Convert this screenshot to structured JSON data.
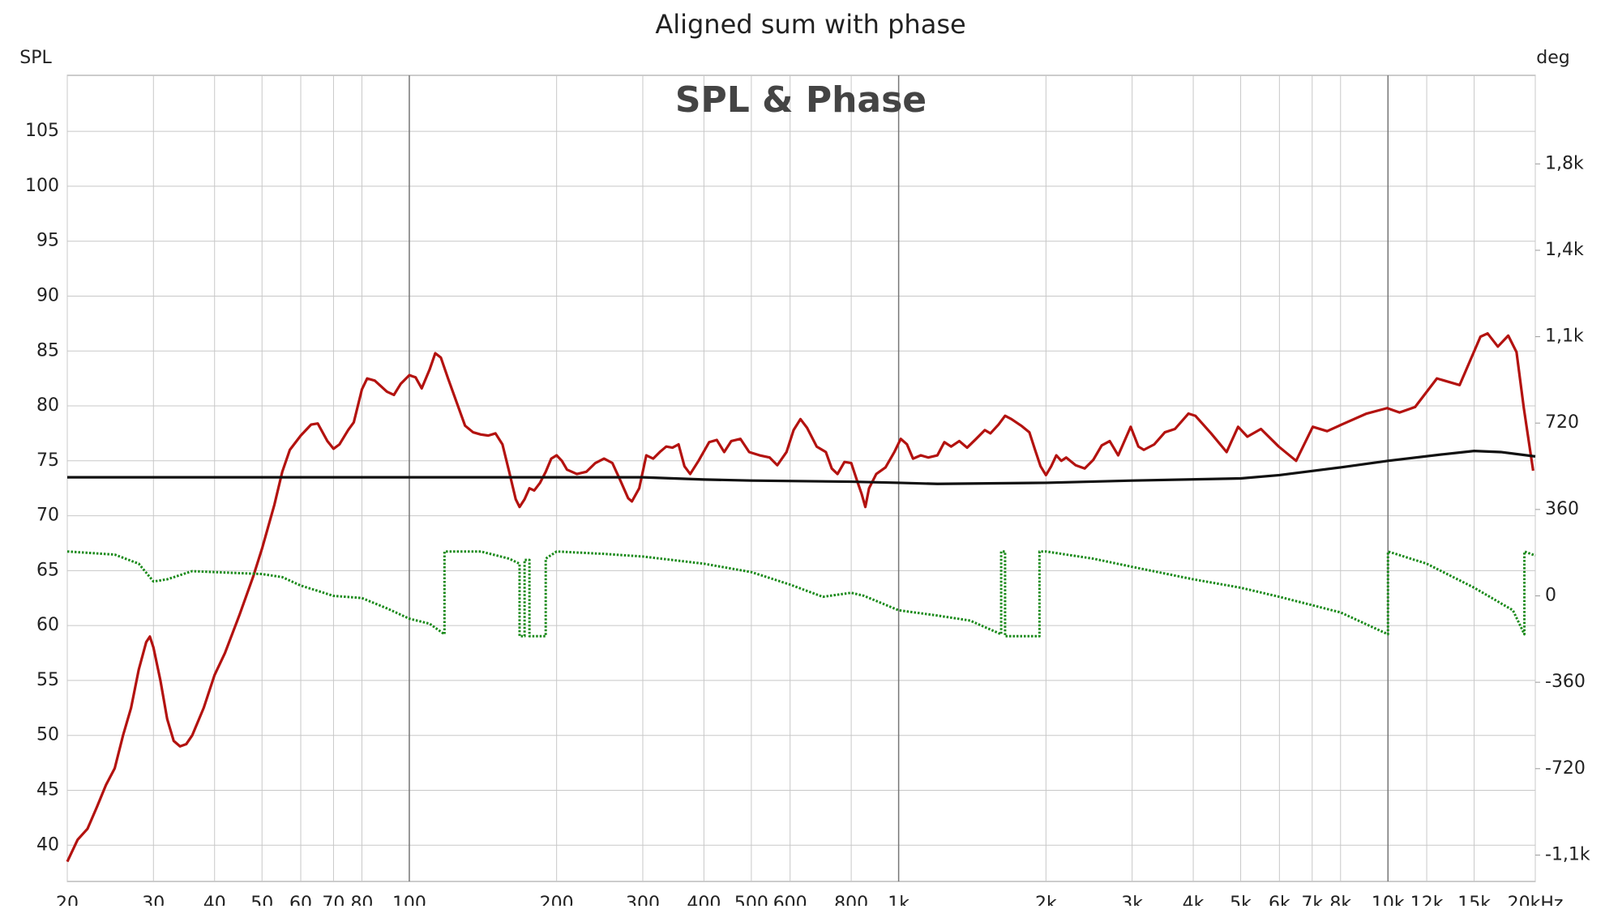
{
  "chart_data": {
    "type": "line",
    "title": "Aligned sum with phase",
    "subtitle": "SPL & Phase",
    "y_label": "SPL",
    "y2_label": "deg",
    "x_scale": "log",
    "grid": true,
    "xlim": [
      20,
      20000
    ],
    "xticks": [
      20,
      30,
      40,
      50,
      60,
      70,
      80,
      100,
      200,
      300,
      400,
      500,
      600,
      800,
      {
        "value": 1000,
        "label": "1k"
      },
      {
        "value": 2000,
        "label": "2k"
      },
      {
        "value": 3000,
        "label": "3k"
      },
      {
        "value": 4000,
        "label": "4k"
      },
      {
        "value": 5000,
        "label": "5k"
      },
      {
        "value": 6000,
        "label": "6k"
      },
      {
        "value": 7000,
        "label": "7k"
      },
      {
        "value": 8000,
        "label": "8k"
      },
      {
        "value": 10000,
        "label": "10k"
      },
      {
        "value": 12000,
        "label": "12k"
      },
      {
        "value": 15000,
        "label": "15k"
      },
      {
        "value": 20000,
        "label": "20kHz"
      }
    ],
    "ylim": [
      36.7,
      110.1
    ],
    "yticks": [
      40,
      45,
      50,
      55,
      60,
      65,
      70,
      75,
      80,
      85,
      90,
      95,
      100,
      105
    ],
    "y2lim": [
      -1190,
      2169
    ],
    "y2ticks": [
      {
        "value": -1080,
        "label": "-1,1k"
      },
      -720,
      -360,
      0,
      360,
      720,
      {
        "value": 1080,
        "label": "1,1k"
      },
      {
        "value": 1440,
        "label": "1,4k"
      },
      {
        "value": 1800,
        "label": "1,8k"
      }
    ],
    "series": [
      {
        "color": "#b3120f",
        "line_style": "solid",
        "x": [
          20,
          21,
          22,
          23,
          24,
          25,
          26,
          27,
          28,
          29,
          29.5,
          30,
          31,
          32,
          33,
          34,
          35,
          36,
          38,
          40,
          42,
          45,
          48,
          50,
          53,
          55,
          57,
          60,
          63,
          65,
          68,
          70,
          72,
          75,
          77,
          80,
          82,
          85,
          90,
          93,
          96,
          100,
          103,
          106,
          110,
          113,
          116,
          120,
          125,
          130,
          135,
          140,
          145,
          150,
          155,
          160,
          165,
          168,
          172,
          176,
          180,
          185,
          190,
          195,
          200,
          205,
          210,
          220,
          230,
          240,
          250,
          260,
          270,
          280,
          285,
          295,
          305,
          315,
          325,
          335,
          345,
          355,
          365,
          375,
          390,
          410,
          425,
          440,
          455,
          475,
          495,
          520,
          545,
          565,
          590,
          610,
          630,
          650,
          680,
          710,
          730,
          750,
          775,
          800,
          825,
          840,
          855,
          870,
          900,
          940,
          980,
          1010,
          1040,
          1070,
          1110,
          1150,
          1200,
          1240,
          1280,
          1330,
          1380,
          1440,
          1500,
          1540,
          1600,
          1650,
          1700,
          1780,
          1850,
          1900,
          1950,
          2000,
          2050,
          2100,
          2150,
          2200,
          2300,
          2400,
          2500,
          2600,
          2700,
          2810,
          2980,
          3090,
          3170,
          3330,
          3500,
          3670,
          3910,
          4040,
          4350,
          4680,
          4940,
          5160,
          5500,
          5980,
          6490,
          7020,
          7510,
          8040,
          9040,
          9960,
          10560,
          11360,
          12590,
          14010,
          15450,
          15980,
          16770,
          17610,
          18310,
          18950,
          19800
        ],
        "values": [
          38.5,
          40.5,
          41.5,
          43.5,
          45.5,
          47,
          50,
          52.5,
          56,
          58.5,
          59,
          58,
          55,
          51.5,
          49.5,
          49,
          49.2,
          50,
          52.5,
          55.5,
          57.5,
          61,
          64.5,
          67,
          71,
          74,
          76,
          77.3,
          78.3,
          78.4,
          76.8,
          76.1,
          76.5,
          77.8,
          78.5,
          81.5,
          82.5,
          82.3,
          81.3,
          81,
          82,
          82.8,
          82.6,
          81.6,
          83.3,
          84.8,
          84.4,
          82.5,
          80.3,
          78.2,
          77.6,
          77.4,
          77.3,
          77.5,
          76.5,
          74,
          71.5,
          70.8,
          71.5,
          72.5,
          72.3,
          73,
          74,
          75.2,
          75.5,
          75,
          74.2,
          73.8,
          74,
          74.8,
          75.2,
          74.8,
          73.2,
          71.6,
          71.3,
          72.5,
          75.5,
          75.2,
          75.8,
          76.3,
          76.2,
          76.5,
          74.5,
          73.8,
          75,
          76.7,
          76.9,
          75.8,
          76.8,
          77,
          75.8,
          75.5,
          75.3,
          74.6,
          75.8,
          77.8,
          78.8,
          78,
          76.3,
          75.8,
          74.3,
          73.8,
          74.9,
          74.8,
          73,
          72,
          70.8,
          72.5,
          73.8,
          74.4,
          75.8,
          77,
          76.5,
          75.2,
          75.5,
          75.3,
          75.5,
          76.7,
          76.3,
          76.8,
          76.2,
          77,
          77.8,
          77.5,
          78.3,
          79.1,
          78.8,
          78.2,
          77.6,
          76,
          74.5,
          73.7,
          74.5,
          75.5,
          75,
          75.3,
          74.6,
          74.3,
          75.1,
          76.4,
          76.8,
          75.5,
          78.1,
          76.3,
          76,
          76.5,
          77.6,
          77.9,
          79.3,
          79.1,
          77.5,
          75.8,
          78.1,
          77.2,
          77.9,
          76.3,
          75,
          78.1,
          77.7,
          78.3,
          79.3,
          79.8,
          79.4,
          79.9,
          82.5,
          81.9,
          86.3,
          86.6,
          85.4,
          86.4,
          84.9,
          79.8,
          74.1
        ]
      },
      {
        "color": "#111111",
        "line_style": "solid",
        "x": [
          20,
          300,
          400,
          500,
          800,
          1000,
          1200,
          2000,
          3000,
          5000,
          6000,
          8000,
          10000,
          13000,
          15000,
          17000,
          20000
        ],
        "values": [
          73.5,
          73.5,
          73.3,
          73.2,
          73.1,
          73.0,
          72.9,
          73.0,
          73.2,
          73.4,
          73.7,
          74.4,
          75.0,
          75.6,
          75.9,
          75.8,
          75.4
        ]
      },
      {
        "color": "#1a8a1a",
        "line_style": "dotted",
        "axis": "y2",
        "x": [
          20,
          25,
          28,
          30,
          32,
          36,
          40,
          50,
          55,
          60,
          70,
          80,
          90,
          100,
          110,
          118,
          118,
          140,
          160,
          168,
          168,
          172,
          172,
          176,
          176,
          190,
          190,
          200,
          250,
          300,
          400,
          500,
          600,
          700,
          800,
          850,
          1000,
          1200,
          1400,
          1620,
          1620,
          1650,
          1650,
          1940,
          1940,
          2000,
          2500,
          3000,
          4000,
          5000,
          6000,
          8000,
          10000,
          10000,
          12000,
          15000,
          18000,
          19000,
          19000,
          20000
        ],
        "values": [
          185,
          172,
          134,
          60,
          69,
          103,
          99,
          91,
          78,
          43,
          0,
          -9,
          -52,
          -95,
          -116,
          -160,
          185,
          185,
          155,
          134,
          -168,
          -168,
          150,
          150,
          -168,
          -168,
          155,
          185,
          175,
          164,
          134,
          99,
          47,
          -4,
          13,
          0,
          -60,
          -82,
          -103,
          -160,
          185,
          185,
          -168,
          -168,
          185,
          185,
          155,
          121,
          69,
          34,
          -4,
          -69,
          -160,
          185,
          134,
          34,
          -60,
          -160,
          185,
          168
        ]
      }
    ]
  }
}
